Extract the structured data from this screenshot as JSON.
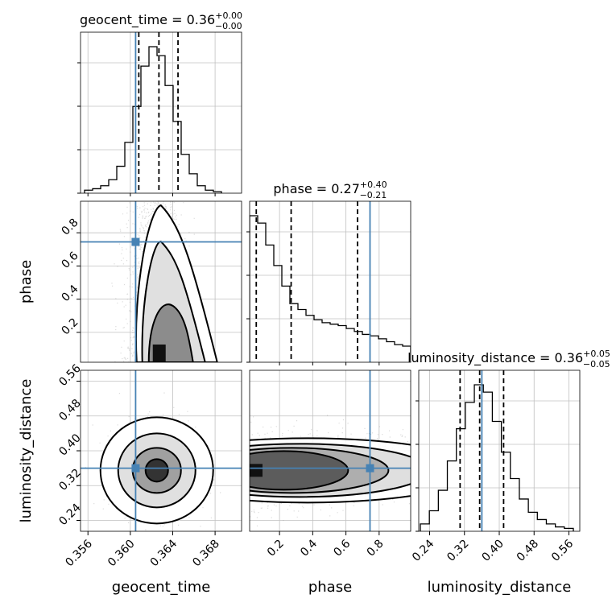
{
  "chart_data": {
    "type": "corner",
    "parameters": [
      "geocent_time",
      "phase",
      "luminosity_distance"
    ],
    "truths": {
      "geocent_time": 0.3605,
      "phase": 0.745,
      "luminosity_distance": 0.36
    },
    "colors": {
      "truth": "#4682b4",
      "hist": "#000000",
      "grid": "#c0c0c0",
      "quantile": "#000000"
    },
    "grid": true,
    "axis_labels": {
      "geocent_time": "geocent_time",
      "phase": "phase",
      "luminosity_distance": "luminosity_distance"
    },
    "axes": {
      "geocent_time": {
        "range": [
          0.3553,
          0.3705
        ],
        "ticks": [
          0.356,
          0.36,
          0.364,
          0.368
        ],
        "tick_labels": [
          "0.356",
          "0.360",
          "0.364",
          "0.368"
        ]
      },
      "phase": {
        "range": [
          0.02,
          0.99
        ],
        "ticks": [
          0.2,
          0.4,
          0.6,
          0.8
        ],
        "tick_labels": [
          "0.2",
          "0.4",
          "0.6",
          "0.8"
        ]
      },
      "luminosity_distance": {
        "range": [
          0.215,
          0.585
        ],
        "ticks": [
          0.24,
          0.32,
          0.4,
          0.48,
          0.56
        ],
        "tick_labels": [
          "0.24",
          "0.32",
          "0.40",
          "0.48",
          "0.56"
        ]
      }
    },
    "titles": [
      {
        "param": "geocent_time",
        "text": "geocent_time = 0.36",
        "sup": "+0.00",
        "sub": "−0.00"
      },
      {
        "param": "phase",
        "text": "phase = 0.27",
        "sup": "+0.40",
        "sub": "−0.21"
      },
      {
        "param": "luminosity_distance",
        "text": "luminosity_distance = 0.36",
        "sup": "+0.05",
        "sub": "−0.05"
      }
    ],
    "quantiles": {
      "geocent_time": [
        0.3608,
        0.3627,
        0.3645
      ],
      "phase": [
        0.06,
        0.27,
        0.67
      ],
      "luminosity_distance": [
        0.31,
        0.355,
        0.41
      ]
    },
    "histograms": {
      "geocent_time": [
        2,
        3,
        5,
        9,
        18,
        34,
        58,
        85,
        98,
        92,
        72,
        48,
        26,
        13,
        5,
        2,
        1
      ],
      "phase": [
        100,
        95,
        80,
        66,
        52,
        40,
        36,
        32,
        29,
        27,
        26,
        25,
        23,
        21,
        19,
        18,
        16,
        14,
        12,
        11
      ],
      "luminosity_distance": [
        5,
        14,
        28,
        48,
        70,
        88,
        100,
        95,
        75,
        54,
        36,
        22,
        13,
        8,
        5,
        3,
        2
      ]
    }
  }
}
